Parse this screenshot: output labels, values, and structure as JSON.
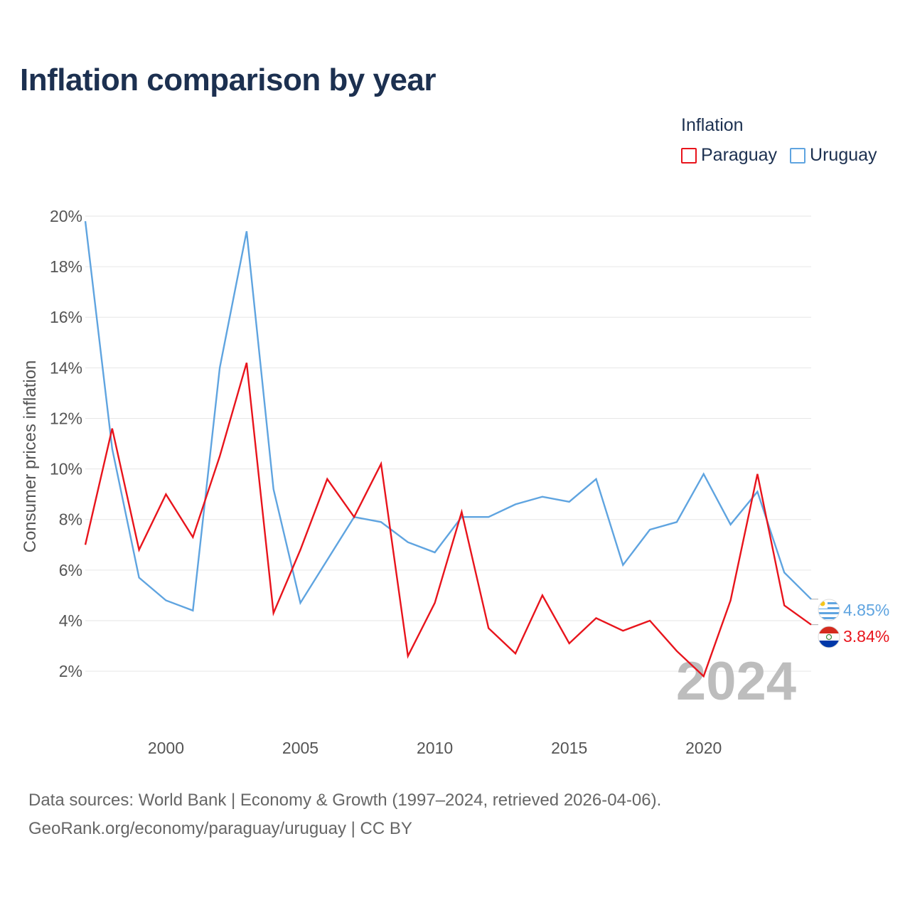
{
  "title": "Inflation comparison by year",
  "legend": {
    "title": "Inflation",
    "items": [
      {
        "label": "Paraguay",
        "color": "#e8141c"
      },
      {
        "label": "Uruguay",
        "color": "#5fa4e0"
      }
    ]
  },
  "source": {
    "line1": "Data sources: World Bank | Economy & Growth (1997–2024, retrieved 2026-04-06).",
    "line2": "GeoRank.org/economy/paraguay/uruguay | CC BY"
  },
  "year_watermark": "2024",
  "end_labels": {
    "uruguay": "4.85%",
    "paraguay": "3.84%"
  },
  "chart_data": {
    "type": "line",
    "title": "Inflation comparison by year",
    "xlabel": "",
    "ylabel": "Consumer prices inflation",
    "xlim": [
      1997,
      2024
    ],
    "ylim": [
      0.4,
      20
    ],
    "y_ticks": [
      2,
      4,
      6,
      8,
      10,
      12,
      14,
      16,
      18,
      20
    ],
    "y_tick_labels": [
      "2%",
      "4%",
      "6%",
      "8%",
      "10%",
      "12%",
      "14%",
      "16%",
      "18%",
      "20%"
    ],
    "x_ticks": [
      2000,
      2005,
      2010,
      2015,
      2020
    ],
    "x_tick_labels": [
      "2000",
      "2005",
      "2010",
      "2015",
      "2020"
    ],
    "grid": true,
    "legend_position": "top-right",
    "x": [
      1997,
      1998,
      1999,
      2000,
      2001,
      2002,
      2003,
      2004,
      2005,
      2006,
      2007,
      2008,
      2009,
      2010,
      2011,
      2012,
      2013,
      2014,
      2015,
      2016,
      2017,
      2018,
      2019,
      2020,
      2021,
      2022,
      2023,
      2024
    ],
    "series": [
      {
        "name": "Paraguay",
        "color": "#e8141c",
        "values": [
          7.0,
          11.6,
          6.8,
          9.0,
          7.3,
          10.5,
          14.2,
          4.3,
          6.8,
          9.6,
          8.1,
          10.2,
          2.6,
          4.7,
          8.3,
          3.7,
          2.7,
          5.0,
          3.1,
          4.1,
          3.6,
          4.0,
          2.8,
          1.8,
          4.8,
          9.8,
          4.6,
          3.84
        ]
      },
      {
        "name": "Uruguay",
        "color": "#5fa4e0",
        "values": [
          19.8,
          10.8,
          5.7,
          4.8,
          4.4,
          14.0,
          19.4,
          9.2,
          4.7,
          6.4,
          8.1,
          7.9,
          7.1,
          6.7,
          8.1,
          8.1,
          8.6,
          8.9,
          8.7,
          9.6,
          6.2,
          7.6,
          7.9,
          9.8,
          7.8,
          9.1,
          5.9,
          4.85
        ]
      }
    ]
  }
}
